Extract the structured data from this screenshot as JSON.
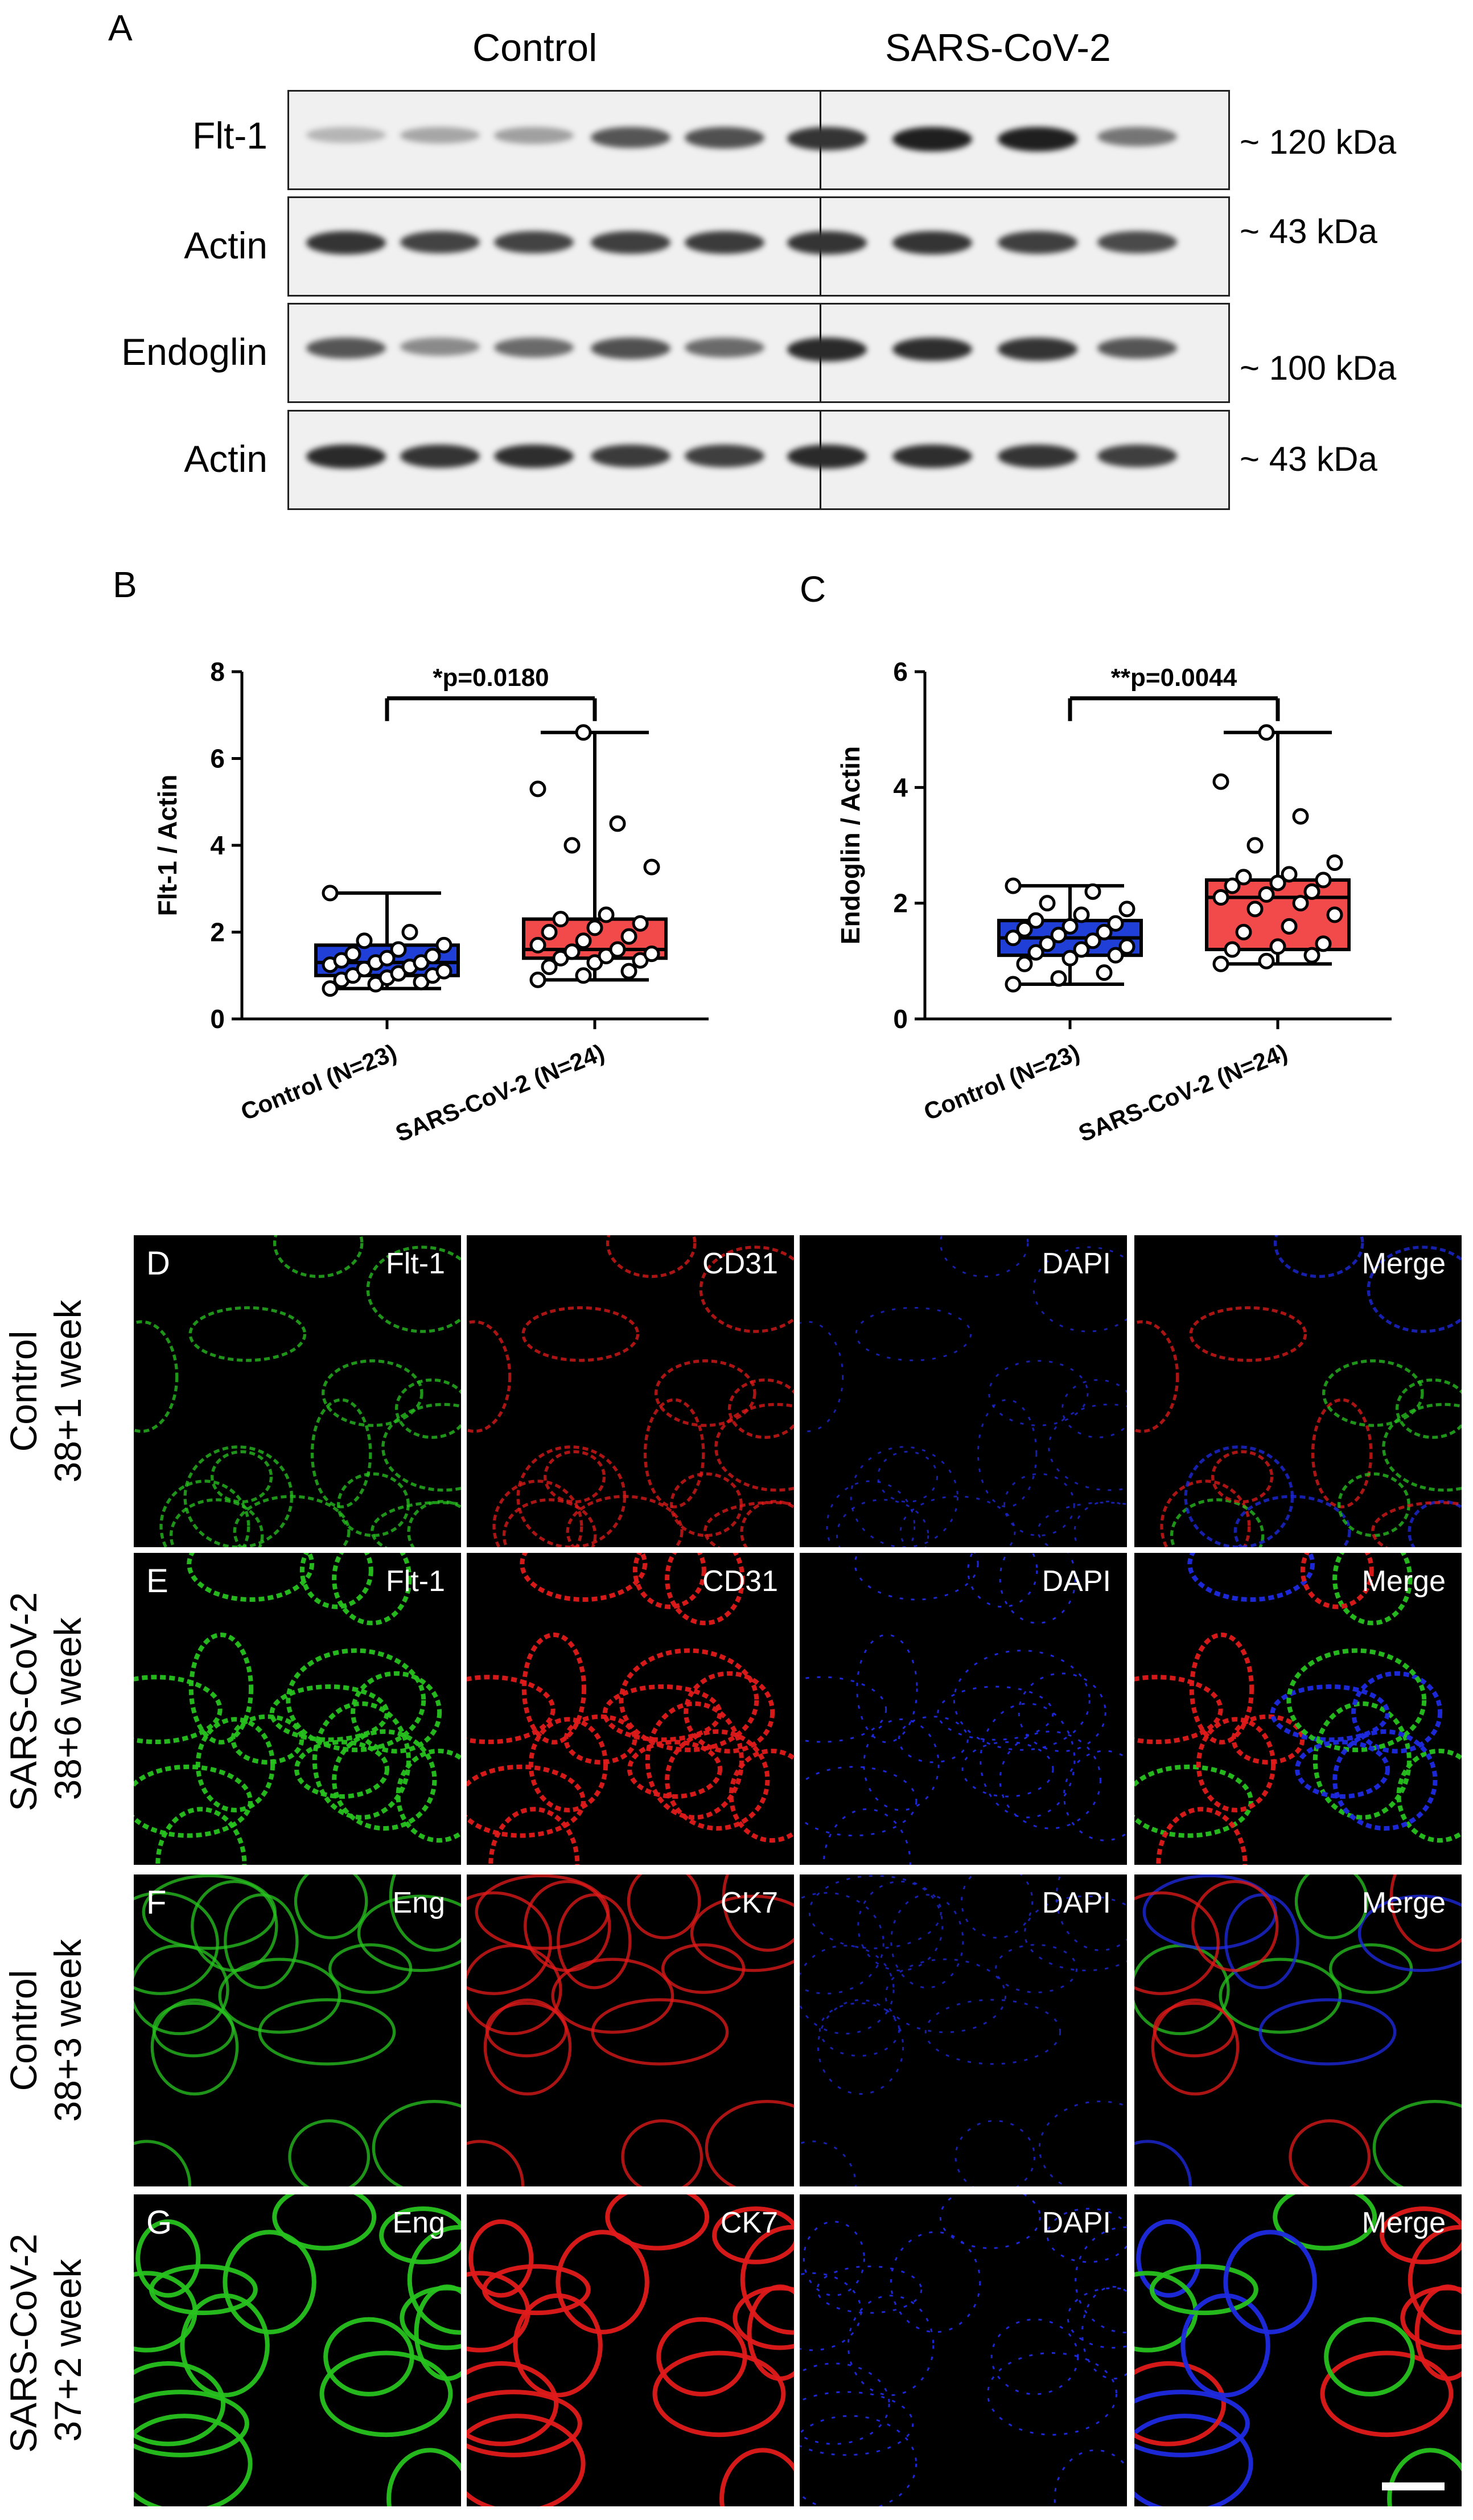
{
  "panel_a": {
    "letter": "A",
    "groups": [
      "Control",
      "SARS-CoV-2"
    ],
    "blots": [
      {
        "label": "Flt-1",
        "kda": "~ 120 kDa",
        "intensity": [
          0.25,
          0.32,
          0.35,
          0.7,
          0.72,
          0.85,
          0.95,
          0.95,
          0.55
        ]
      },
      {
        "label": "Actin",
        "kda": "~ 43 kDa",
        "intensity": [
          0.85,
          0.78,
          0.78,
          0.8,
          0.82,
          0.85,
          0.85,
          0.8,
          0.75
        ]
      },
      {
        "label": "Endoglin",
        "kda": "~ 100 kDa",
        "intensity": [
          0.7,
          0.45,
          0.6,
          0.72,
          0.6,
          0.9,
          0.88,
          0.85,
          0.7
        ]
      },
      {
        "label": "Actin",
        "kda": "~ 43 kDa",
        "intensity": [
          0.9,
          0.85,
          0.88,
          0.82,
          0.8,
          0.9,
          0.88,
          0.85,
          0.8
        ]
      }
    ]
  },
  "chart_data": [
    {
      "type": "box",
      "panel": "B",
      "ylabel": "Flt-1 / Actin",
      "ylim": [
        0,
        8
      ],
      "yticks": [
        "0",
        "2",
        "4",
        "6",
        "8"
      ],
      "categories": [
        "Control (N=23)",
        "SARS-CoV-2 (N=24)"
      ],
      "annotation": "*p=0.0180",
      "colors": [
        "#1f3fd6",
        "#f24a4a"
      ],
      "boxes": [
        {
          "min": 0.7,
          "q1": 1.0,
          "median": 1.3,
          "q3": 1.7,
          "max": 2.9,
          "points": [
            0.7,
            0.8,
            0.85,
            0.9,
            0.95,
            1.0,
            1.0,
            1.05,
            1.1,
            1.15,
            1.2,
            1.25,
            1.3,
            1.3,
            1.35,
            1.4,
            1.45,
            1.5,
            1.6,
            1.7,
            1.8,
            2.0,
            2.9
          ]
        },
        {
          "min": 0.9,
          "q1": 1.4,
          "median": 1.6,
          "q3": 2.3,
          "max": 6.6,
          "points": [
            0.9,
            1.0,
            1.1,
            1.2,
            1.3,
            1.35,
            1.4,
            1.45,
            1.5,
            1.55,
            1.6,
            1.7,
            1.8,
            1.9,
            2.0,
            2.1,
            2.2,
            2.3,
            2.4,
            3.5,
            4.0,
            4.5,
            5.3,
            6.6
          ]
        }
      ]
    },
    {
      "type": "box",
      "panel": "C",
      "ylabel": "Endoglin / Actin",
      "ylim": [
        0,
        6
      ],
      "yticks": [
        "0",
        "2",
        "4",
        "6"
      ],
      "categories": [
        "Control (N=23)",
        "SARS-CoV-2 (N=24)"
      ],
      "annotation": "**p=0.0044",
      "colors": [
        "#1f3fd6",
        "#f24a4a"
      ],
      "boxes": [
        {
          "min": 0.6,
          "q1": 1.1,
          "median": 1.4,
          "q3": 1.7,
          "max": 2.3,
          "points": [
            0.6,
            0.7,
            0.8,
            0.95,
            1.05,
            1.1,
            1.15,
            1.2,
            1.25,
            1.3,
            1.35,
            1.4,
            1.45,
            1.5,
            1.55,
            1.6,
            1.65,
            1.7,
            1.8,
            1.9,
            2.0,
            2.2,
            2.3
          ]
        },
        {
          "min": 0.95,
          "q1": 1.2,
          "median": 2.1,
          "q3": 2.4,
          "max": 4.95,
          "points": [
            0.95,
            1.0,
            1.1,
            1.2,
            1.25,
            1.3,
            1.5,
            1.6,
            1.8,
            1.9,
            2.0,
            2.1,
            2.15,
            2.2,
            2.3,
            2.35,
            2.4,
            2.45,
            2.5,
            2.7,
            3.0,
            3.5,
            4.1,
            4.95
          ]
        }
      ]
    }
  ],
  "micrographs": {
    "rows": [
      {
        "letter": "D",
        "row_label_1": "Control",
        "row_label_2": "38+1 week",
        "channels": [
          "Flt-1",
          "CD31",
          "DAPI",
          "Merge"
        ]
      },
      {
        "letter": "E",
        "row_label_1": "SARS-CoV-2",
        "row_label_2": "38+6 week",
        "channels": [
          "Flt-1",
          "CD31",
          "DAPI",
          "Merge"
        ]
      },
      {
        "letter": "F",
        "row_label_1": "Control",
        "row_label_2": "38+3 week",
        "channels": [
          "Eng",
          "CK7",
          "DAPI",
          "Merge"
        ]
      },
      {
        "letter": "G",
        "row_label_1": "SARS-CoV-2",
        "row_label_2": "37+2 week",
        "channels": [
          "Eng",
          "CK7",
          "DAPI",
          "Merge"
        ]
      }
    ],
    "channel_colors": {
      "green": "#27c21f",
      "red": "#e01a1a",
      "blue": "#1d2ae0"
    }
  }
}
